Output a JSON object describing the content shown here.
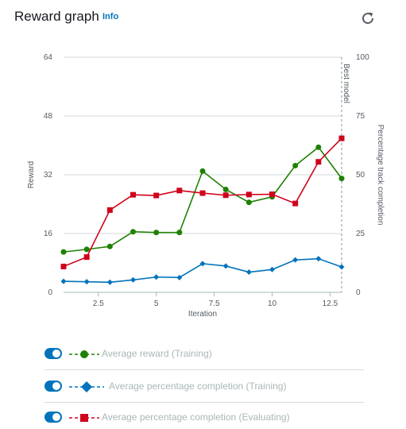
{
  "header": {
    "title": "Reward graph",
    "info_label": "Info",
    "refresh_icon": "refresh-icon"
  },
  "colors": {
    "reward": "#1d8102",
    "completion_training": "#0073bb",
    "completion_evaluating": "#d0021b",
    "toggle": "#0073bb",
    "link": "#0073bb"
  },
  "chart_data": {
    "type": "line",
    "xlabel": "Iteration",
    "ylabel_left": "Reward",
    "ylabel_right": "Percentage track completion",
    "best_model_label": "Best model",
    "best_model_x": 13,
    "xlim": [
      1,
      13
    ],
    "ylim_left": [
      0,
      64
    ],
    "ylim_right": [
      0,
      100
    ],
    "x_ticks": [
      "2.5",
      "5",
      "7.5",
      "10",
      "12.5"
    ],
    "x_tick_values": [
      2.5,
      5,
      7.5,
      10,
      12.5
    ],
    "y_ticks_left": [
      "0",
      "16",
      "32",
      "48",
      "64"
    ],
    "y_ticks_right": [
      "0",
      "25",
      "50",
      "75",
      "100"
    ],
    "grid": "horizontal",
    "x": [
      1,
      2,
      3,
      4,
      5,
      6,
      7,
      8,
      9,
      10,
      11,
      12,
      13
    ],
    "series": [
      {
        "name": "Average reward (Training)",
        "axis": "left",
        "marker": "circle",
        "color": "#1d8102",
        "values": [
          11,
          11.7,
          12.5,
          16.5,
          16.3,
          16.3,
          33,
          28,
          24.5,
          26,
          34.5,
          39.5,
          31
        ]
      },
      {
        "name": "Average percentage completion (Training)",
        "axis": "right",
        "marker": "diamond",
        "color": "#0073bb",
        "values": [
          4.7,
          4.5,
          4.3,
          5.3,
          6.5,
          6.3,
          12.2,
          11.2,
          8.6,
          9.7,
          13.8,
          14.3,
          10.8
        ]
      },
      {
        "name": "Average percentage completion (Evaluating)",
        "axis": "right",
        "marker": "square",
        "color": "#d0021b",
        "values": [
          11,
          15,
          35,
          41.5,
          41.2,
          43.3,
          42.2,
          41.3,
          41.6,
          41.7,
          37.8,
          55.5,
          65.5
        ]
      }
    ]
  },
  "legend": {
    "items": [
      {
        "label": "Average reward (Training)",
        "marker": "circle",
        "color": "#1d8102",
        "enabled": true
      },
      {
        "label": "Average percentage completion (Training)",
        "marker": "diamond",
        "color": "#0073bb",
        "enabled": true
      },
      {
        "label": "Average percentage completion (Evaluating)",
        "marker": "square",
        "color": "#d0021b",
        "enabled": true
      }
    ]
  }
}
